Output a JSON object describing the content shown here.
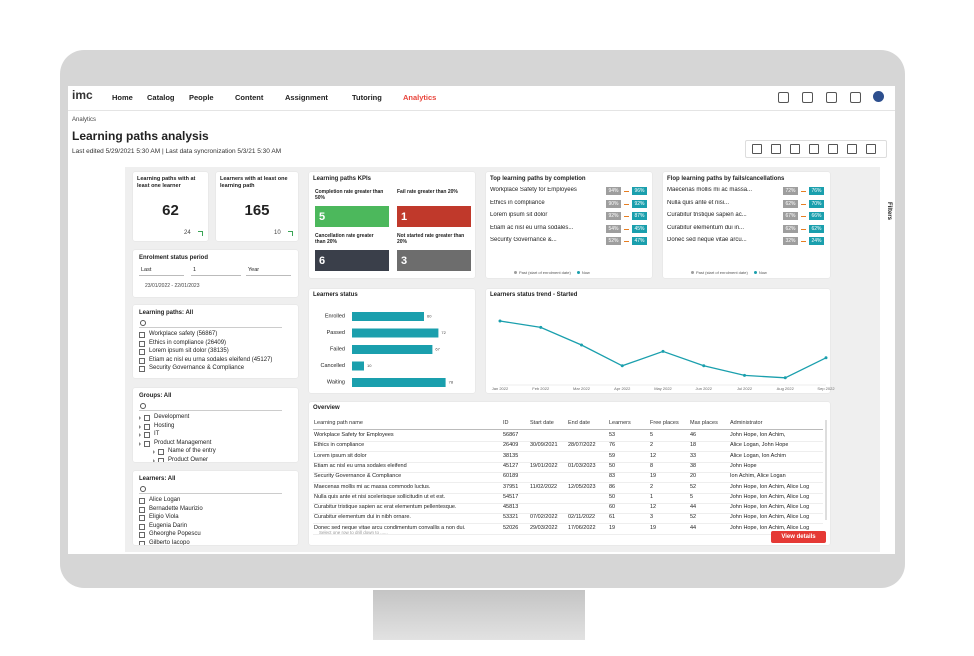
{
  "nav": {
    "logo": "imc",
    "items": [
      "Home",
      "Catalog",
      "People",
      "Content",
      "Assignment",
      "Tutoring",
      "Analytics"
    ]
  },
  "header": {
    "breadcrumb": "Analytics",
    "title": "Learning paths analysis",
    "subtitle": "Last edited 5/29/2021 5:30 AM | Last data syncronization 5/3/21 5:30 AM"
  },
  "kpi_cards": [
    {
      "label": "Learning paths with at least one learner",
      "value": 62,
      "delta": 24
    },
    {
      "label": "Learners with at least one learning path",
      "value": 165,
      "delta": 10
    }
  ],
  "enrolment_period": {
    "title": "Enrolment status period",
    "unit": "Last",
    "amount": "1",
    "period": "Year",
    "range": "23/01/2022 - 22/01/2023"
  },
  "learning_paths_filter": {
    "title": "Learning paths: All",
    "items": [
      "Workplace safety (56867)",
      "Ethics in compliance (26409)",
      "Lorem ipsum sit dolor (38135)",
      "Etiam ac nisl eu urna sodales eleifend (45127)",
      "Security Governance & Compliance"
    ]
  },
  "groups_filter": {
    "title": "Groups: All",
    "items": [
      "Development",
      "Hosting",
      "IT",
      "Product Management",
      "Name of the entry",
      "Product Owner"
    ]
  },
  "learners_filter": {
    "title": "Learners: All",
    "items": [
      "Alice Logan",
      "Bernadette Maurizio",
      "Eligio Viola",
      "Eugenia Darin",
      "Gheorghe Popescu",
      "Gilberto Iacopo"
    ]
  },
  "lp_kpis": {
    "title": "Learning paths KPIs",
    "tiles": [
      {
        "label": "Completion rate greater than 50%",
        "value": 5,
        "color": "#4cb85c"
      },
      {
        "label": "Fail rate greater than 20%",
        "value": 1,
        "color": "#c0392b"
      },
      {
        "label": "Cancellation rate greater than 20%",
        "value": 6,
        "color": "#3a3f4a"
      },
      {
        "label": "Not started rate greater than 20%",
        "value": 3,
        "color": "#6d6d6d"
      }
    ]
  },
  "top_completion": {
    "title": "Top learning paths by completion",
    "rows": [
      {
        "name": "Workplace Safety for Employees",
        "past": "94%",
        "now": "96%"
      },
      {
        "name": "Ethics in compliance",
        "past": "90%",
        "now": "92%"
      },
      {
        "name": "Lorem ipsum sit dolor",
        "past": "92%",
        "now": "87%"
      },
      {
        "name": "Etiam ac nisl eu urna sodales...",
        "past": "54%",
        "now": "45%"
      },
      {
        "name": "Security Governance &...",
        "past": "52%",
        "now": "47%"
      }
    ],
    "legend": [
      "Past (start of enrolment date)",
      "Now"
    ]
  },
  "flop_paths": {
    "title": "Flop learning paths by fails/cancellations",
    "rows": [
      {
        "name": "Maecenas mollis mi ac massa...",
        "past": "72%",
        "now": "76%"
      },
      {
        "name": "Nulla quis ante et nisi...",
        "past": "62%",
        "now": "70%"
      },
      {
        "name": "Curabitur tristique sapien ac...",
        "past": "67%",
        "now": "66%"
      },
      {
        "name": "Curabitur elementum dui in...",
        "past": "62%",
        "now": "62%"
      },
      {
        "name": "Donec sed neque vitae arcu...",
        "past": "32%",
        "now": "24%"
      }
    ],
    "legend": [
      "Past (start of enrolment date)",
      "Now"
    ]
  },
  "learners_status": {
    "type": "bar",
    "title": "Learners status",
    "categories": [
      "Enrolled",
      "Passed",
      "Failed",
      "Cancelled",
      "Waiting"
    ],
    "values": [
      60,
      72,
      67,
      10,
      78
    ],
    "xlim": [
      0,
      100
    ],
    "color": "#1a9fad"
  },
  "status_trend": {
    "type": "line",
    "title": "Learners status trend - Started",
    "x": [
      "Jan 2022",
      "Feb 2022",
      "Mar 2022",
      "Apr 2022",
      "May 2022",
      "Jun 2022",
      "Jul 2022",
      "Aug 2022",
      "Sep 2022"
    ],
    "values": [
      80,
      72,
      50,
      24,
      42,
      24,
      12,
      9,
      34
    ],
    "ylim": [
      0,
      100
    ],
    "color": "#1a9fad"
  },
  "overview": {
    "title": "Overview",
    "columns": [
      "Learning path name",
      "ID",
      "Start date",
      "End date",
      "Learners",
      "Free places",
      "Max places",
      "Administrator"
    ],
    "rows": [
      [
        "Workplace Safety for Employees",
        "56867",
        null,
        null,
        "53",
        "5",
        "46",
        "John Hope, Ion Achim,"
      ],
      [
        "Ethics in compliance",
        "26409",
        "30/09/2021",
        "28/07/2022",
        "76",
        "2",
        "18",
        "Alice Logan, John Hope"
      ],
      [
        "Lorem ipsum sit dolor",
        "38135",
        null,
        null,
        "59",
        "12",
        "33",
        "Alice Logan, Ion Achim"
      ],
      [
        "Etiam ac nisl eu urna sodales eleifend",
        "45127",
        "19/01/2022",
        "01/03/2023",
        "50",
        "8",
        "38",
        "John Hope"
      ],
      [
        "Security Governance & Compliance",
        "60189",
        null,
        null,
        "83",
        "19",
        "20",
        "Ion Achim, Alice Logan"
      ],
      [
        "Maecenas mollis mi ac massa commodo luctus.",
        "37951",
        "11/02/2022",
        "12/05/2023",
        "86",
        "2",
        "52",
        "John Hope, Ion Achim, Alice Log"
      ],
      [
        "Nulla quis ante et nisi scelerisque sollicitudin ut et est.",
        "54517",
        null,
        null,
        "50",
        "1",
        "5",
        "John Hope, Ion Achim, Alice Log"
      ],
      [
        "Curabitur tristique sapien ac erat elementum pellentesque.",
        "45813",
        null,
        null,
        "60",
        "12",
        "44",
        "John Hope, Ion Achim, Alice Log"
      ],
      [
        "Curabitur elementum dui in nibh ornare.",
        "53321",
        "07/02/2022",
        "02/11/2022",
        "61",
        "3",
        "52",
        "John Hope, Ion Achim, Alice Log"
      ],
      [
        "Donec sed neque vitae arcu condimentum convallis a non dui.",
        "52026",
        "29/03/2022",
        "17/06/2022",
        "19",
        "19",
        "44",
        "John Hope, Ion Achim, Alice Log"
      ]
    ],
    "hint": "Select one row to drill down to ......",
    "button": "View details"
  },
  "filters_tab": "Filters"
}
